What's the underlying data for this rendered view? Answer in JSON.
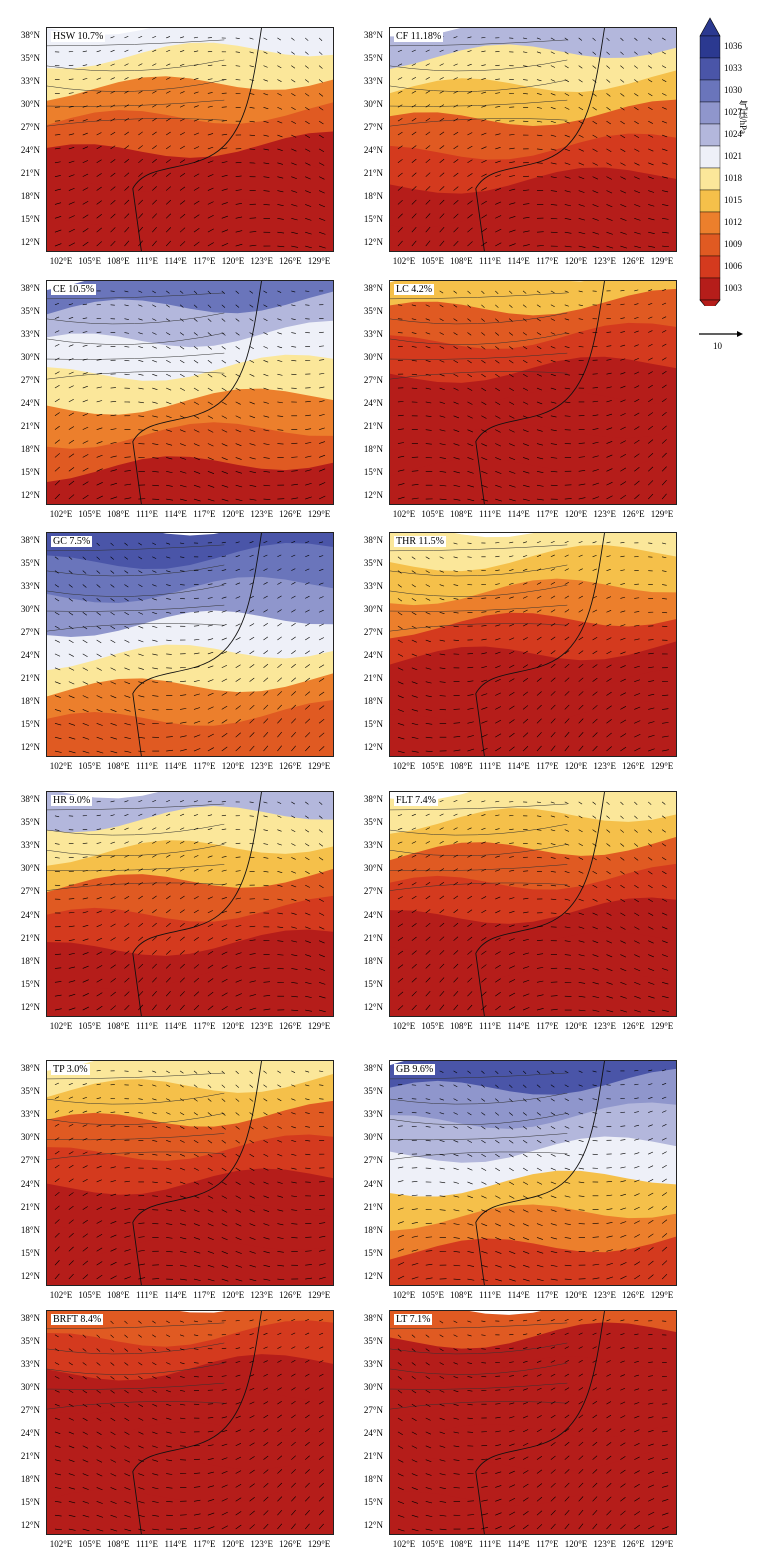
{
  "lat_labels": [
    "38°N",
    "35°N",
    "33°N",
    "30°N",
    "27°N",
    "24°N",
    "21°N",
    "18°N",
    "15°N",
    "12°N"
  ],
  "lon_labels": [
    "102°E",
    "105°E",
    "108°E",
    "111°E",
    "114°E",
    "117°E",
    "120°E",
    "123°E",
    "126°E",
    "129°E"
  ],
  "colorbar": {
    "unit": "气压/hPa",
    "levels": [
      "1036",
      "1033",
      "1030",
      "1027",
      "1024",
      "1021",
      "1018",
      "1015",
      "1012",
      "1009",
      "1006",
      "1003"
    ],
    "colors": [
      "#2b3990",
      "#4a55a8",
      "#6a75bb",
      "#8f96cc",
      "#b3b7dc",
      "#eef0f8",
      "#fbe79a",
      "#f5c04a",
      "#ec7f2c",
      "#e05a22",
      "#d43a1e",
      "#b51d1a"
    ]
  },
  "reference_vector": {
    "label": "10"
  },
  "panels": [
    {
      "label": "HSW 10.7%",
      "high": 0.55
    },
    {
      "label": "CF 11.18%",
      "high": 0.6
    },
    {
      "label": "CE 10.5%",
      "high": 0.8
    },
    {
      "label": "LC 4.2%",
      "high": 0.35
    },
    {
      "label": "GC 7.5%",
      "high": 0.95
    },
    {
      "label": "THR 11.5%",
      "high": 0.5
    },
    {
      "label": "HR 9.0%",
      "high": 0.6
    },
    {
      "label": "FLT 7.4%",
      "high": 0.45
    },
    {
      "label": "TP 3.0%",
      "high": 0.45
    },
    {
      "label": "GB 9.6%",
      "high": 0.9
    },
    {
      "label": "BRFT 8.4%",
      "high": 0.2
    },
    {
      "label": "LT 7.1%",
      "high": 0.15
    }
  ]
}
